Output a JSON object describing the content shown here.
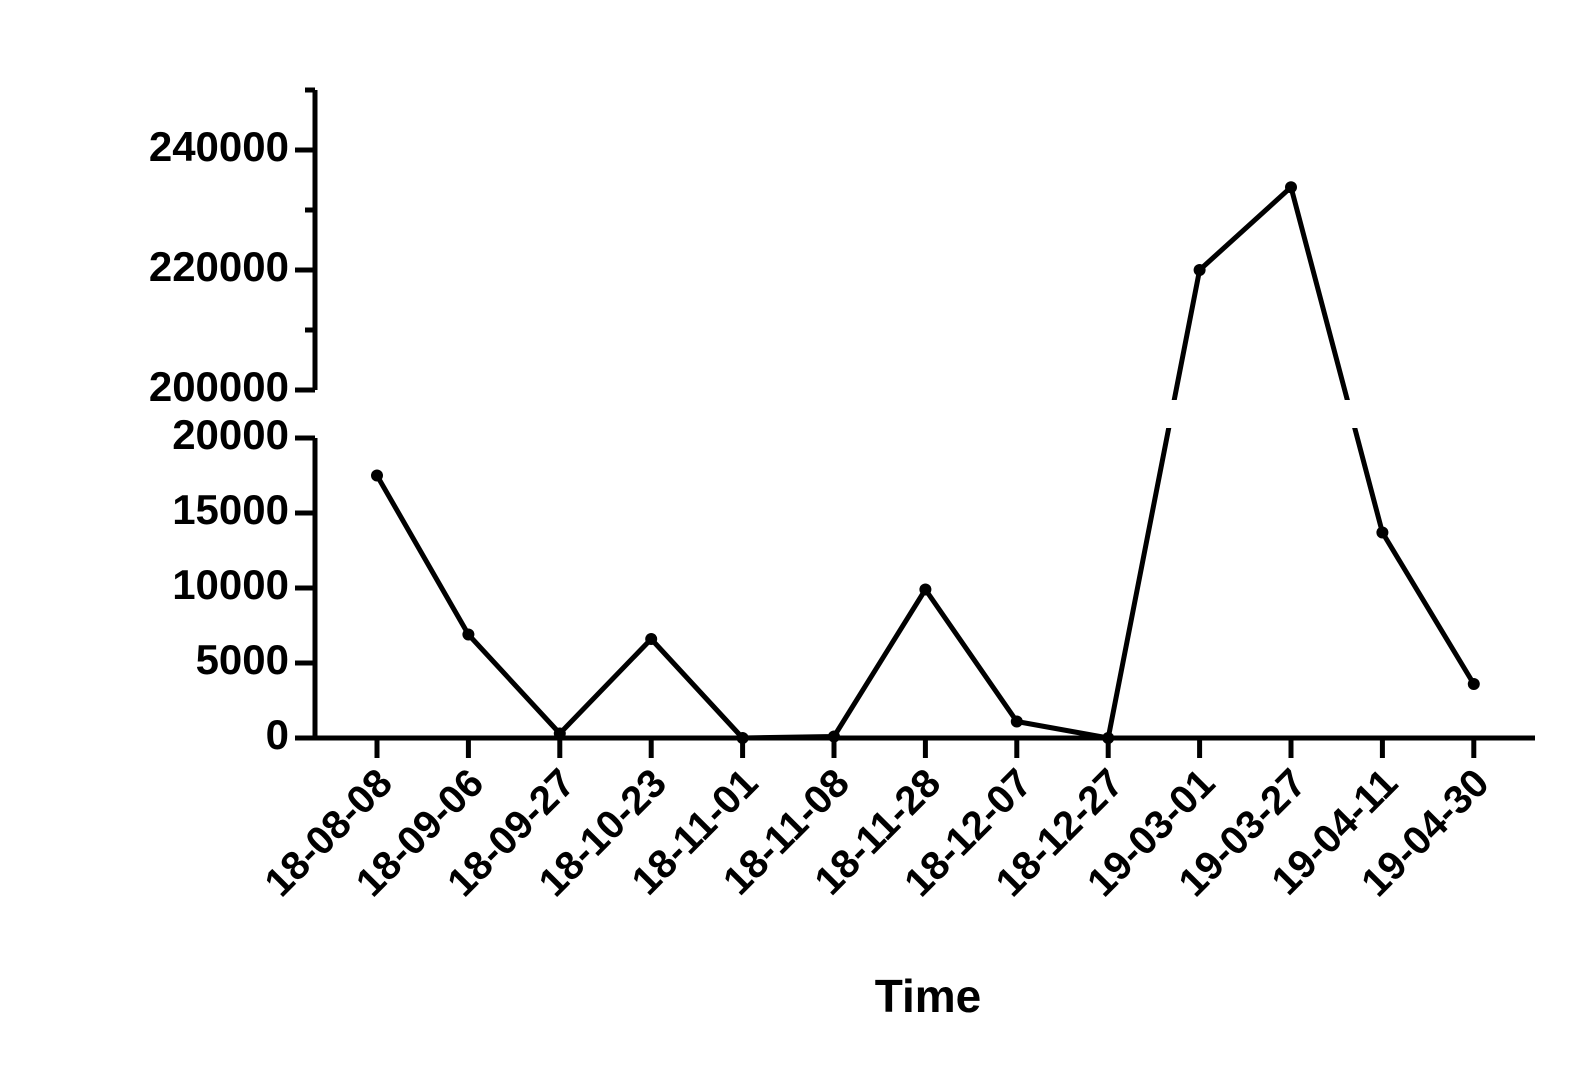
{
  "chart_data": {
    "type": "line",
    "x_label": "Time",
    "categories": [
      "18-08-08",
      "18-09-06",
      "18-09-27",
      "18-10-23",
      "18-11-01",
      "18-11-08",
      "18-11-28",
      "18-12-07",
      "18-12-27",
      "19-03-01",
      "19-03-27",
      "19-04-11",
      "19-04-30"
    ],
    "values": [
      17500,
      6900,
      300,
      6600,
      0,
      100,
      9900,
      1100,
      0,
      220000,
      233800,
      13700,
      3600
    ],
    "color": "#000000",
    "ylim_segments": [
      [
        0,
        20000
      ],
      [
        200000,
        250000
      ]
    ],
    "yticks": [
      0,
      5000,
      10000,
      15000,
      20000,
      200000,
      220000,
      240000
    ],
    "yticks_minor": [
      210000,
      230000,
      250000
    ],
    "markers": true
  }
}
